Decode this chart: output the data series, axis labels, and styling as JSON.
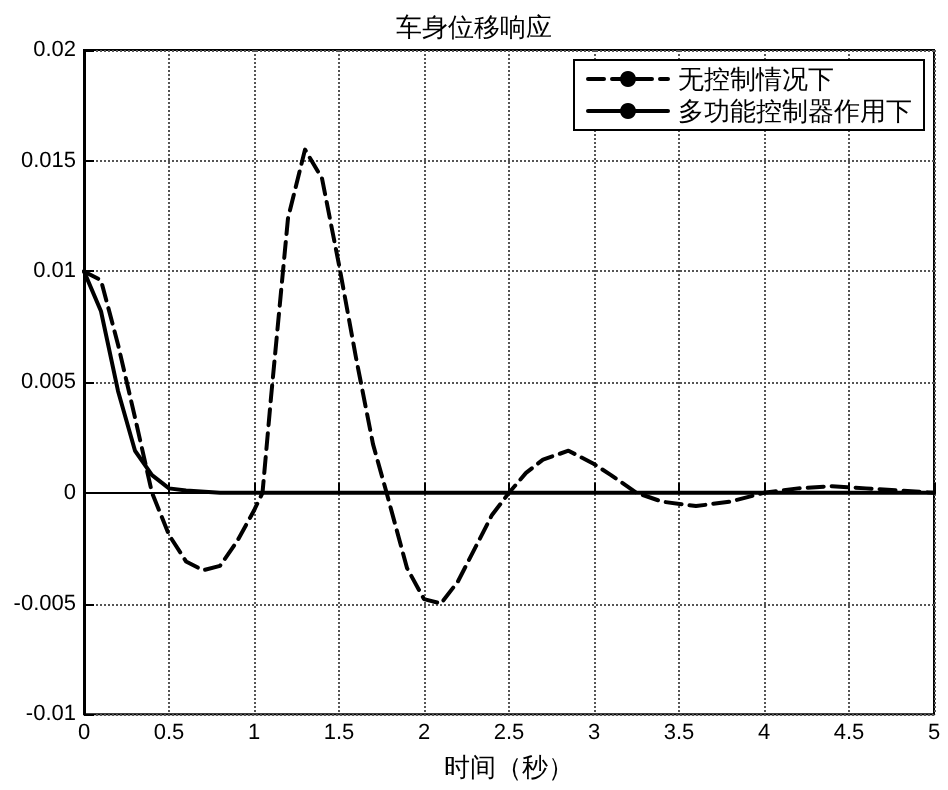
{
  "chart_data": {
    "type": "line",
    "title": "车身位移响应",
    "xlabel": "时间（秒）",
    "xlim": [
      0,
      5
    ],
    "xticks": [
      0,
      0.5,
      1,
      1.5,
      2,
      2.5,
      3,
      3.5,
      4,
      4.5,
      5
    ],
    "ylim": [
      -0.01,
      0.02
    ],
    "yticks": [
      -0.01,
      -0.005,
      0,
      0.005,
      0.01,
      0.015,
      0.02
    ],
    "grid": true,
    "legend": "top right",
    "marker": "none",
    "series": [
      {
        "name": "无控制情况下",
        "color": "#000000",
        "line_style": "dashed",
        "x": [
          0,
          0.1,
          0.2,
          0.3,
          0.4,
          0.5,
          0.6,
          0.7,
          0.8,
          0.9,
          1.0,
          1.05,
          1.1,
          1.2,
          1.3,
          1.4,
          1.5,
          1.6,
          1.7,
          1.78,
          1.9,
          2.0,
          2.1,
          2.2,
          2.3,
          2.4,
          2.5,
          2.6,
          2.7,
          2.85,
          3.0,
          3.1,
          3.25,
          3.4,
          3.6,
          3.8,
          4.0,
          4.2,
          4.4,
          4.6,
          4.8,
          5.0
        ],
        "values": [
          0.01,
          0.0096,
          0.0067,
          0.0034,
          0,
          -0.0019,
          -0.0031,
          -0.0035,
          -0.0033,
          -0.0022,
          -0.0008,
          0,
          0.0043,
          0.0124,
          0.0155,
          0.0142,
          0.0103,
          0.0061,
          0.0022,
          0,
          -0.0034,
          -0.0048,
          -0.005,
          -0.004,
          -0.0025,
          -0.001,
          0,
          0.0009,
          0.0015,
          0.0019,
          0.0013,
          0.0008,
          0,
          -0.0004,
          -0.0006,
          -0.0004,
          0,
          0.0002,
          0.0003,
          0.0002,
          0.0001,
          0
        ]
      },
      {
        "name": "多功能控制器作用下",
        "color": "#000000",
        "line_style": "solid",
        "x": [
          0,
          0.1,
          0.2,
          0.3,
          0.4,
          0.5,
          0.6,
          0.8,
          5.0
        ],
        "values": [
          0.01,
          0.0082,
          0.0046,
          0.0019,
          0.0008,
          0.0002,
          0.0001,
          0,
          0
        ]
      }
    ]
  }
}
